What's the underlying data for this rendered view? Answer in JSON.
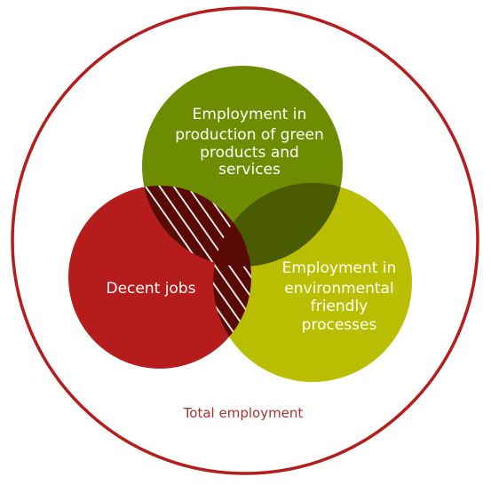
{
  "diagram": {
    "outer_label": "Total employment",
    "sets": {
      "green_products": {
        "line1": "Employment in",
        "line2": "production of green",
        "line3": "products and",
        "line4": "services"
      },
      "decent_jobs": {
        "line1": "Decent jobs"
      },
      "environmental_processes": {
        "line1": "Employment in",
        "line2": "environmental",
        "line3": "friendly",
        "line4": "processes"
      }
    }
  },
  "colors": {
    "outer_ring": "#b71c1c",
    "outer_label": "#a83232",
    "decent_jobs": "#b71c1c",
    "green_products": "#6e8c00",
    "environmental_processes": "#b9bf00",
    "overlap_green_env": "#4a5a00",
    "overlap_triple": "#5a0a05",
    "hatch_lines": "#ffffff"
  }
}
